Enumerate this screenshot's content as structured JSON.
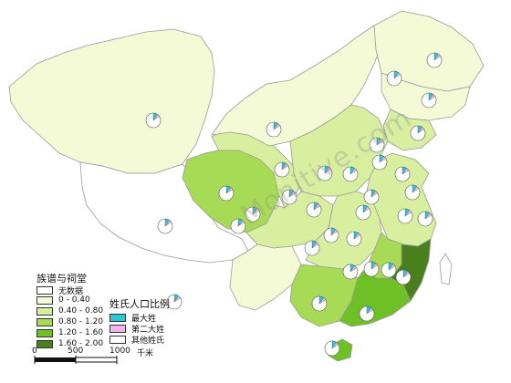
{
  "colors": {
    "no_data": "#ffffff",
    "c1": "#f4f9d6",
    "c2": "#d7ef9f",
    "c3": "#a8db55",
    "c4": "#6fbf26",
    "c5": "#4a7f1d",
    "pie_max": "#2cc6d8",
    "pie_second": "#f1b4ee",
    "pie_other": "#ffffff",
    "border": "#9a9a9a"
  },
  "legend_density": {
    "title": "族谱与祠堂",
    "classes": [
      {
        "label": "无数据",
        "color_key": "no_data"
      },
      {
        "label": "0 - 0.40",
        "color_key": "c1"
      },
      {
        "label": "0.40 - 0.80",
        "color_key": "c2"
      },
      {
        "label": "0.80 - 1.20",
        "color_key": "c3"
      },
      {
        "label": "1.20 - 1.60",
        "color_key": "c4"
      },
      {
        "label": "1.60 - 2.00",
        "color_key": "c5"
      }
    ]
  },
  "legend_pie": {
    "title": "姓氏人口比例",
    "items": [
      {
        "label": "最大姓",
        "color_key": "pie_max"
      },
      {
        "label": "第二大姓",
        "color_key": "pie_second"
      },
      {
        "label": "其他姓氏",
        "color_key": "pie_other"
      }
    ]
  },
  "scalebar": {
    "ticks": [
      "0",
      "500",
      "1000"
    ],
    "unit": "千米"
  },
  "watermark": "Monitive.com",
  "regions": [
    {
      "name": "xinjiang",
      "cls": "c1"
    },
    {
      "name": "tibet",
      "cls": "no_data"
    },
    {
      "name": "qinghai",
      "cls": "c3"
    },
    {
      "name": "gansu",
      "cls": "c2"
    },
    {
      "name": "inner-mongolia",
      "cls": "c1"
    },
    {
      "name": "heilongjiang",
      "cls": "c1"
    },
    {
      "name": "jilin",
      "cls": "c1"
    },
    {
      "name": "liaoning",
      "cls": "c2"
    },
    {
      "name": "north-central",
      "cls": "c2"
    },
    {
      "name": "sichuan",
      "cls": "c2"
    },
    {
      "name": "yunnan",
      "cls": "c1"
    },
    {
      "name": "central",
      "cls": "c2"
    },
    {
      "name": "east-coast",
      "cls": "c2"
    },
    {
      "name": "guangxi",
      "cls": "c3"
    },
    {
      "name": "guangdong",
      "cls": "c4"
    },
    {
      "name": "fujian",
      "cls": "c5"
    },
    {
      "name": "jiangxi",
      "cls": "c3"
    },
    {
      "name": "hainan",
      "cls": "c4"
    },
    {
      "name": "taiwan",
      "cls": "no_data"
    }
  ],
  "pies": [
    {
      "max": 0.1,
      "second": 0.06
    },
    {
      "max": 0.1,
      "second": 0.06
    },
    {
      "max": 0.1,
      "second": 0.06
    },
    {
      "max": 0.1,
      "second": 0.06
    },
    {
      "max": 0.1,
      "second": 0.06
    },
    {
      "max": 0.1,
      "second": 0.06
    },
    {
      "max": 0.1,
      "second": 0.06
    },
    {
      "max": 0.1,
      "second": 0.06
    },
    {
      "max": 0.1,
      "second": 0.06
    },
    {
      "max": 0.1,
      "second": 0.06
    },
    {
      "max": 0.1,
      "second": 0.06
    },
    {
      "max": 0.1,
      "second": 0.06
    },
    {
      "max": 0.1,
      "second": 0.06
    },
    {
      "max": 0.1,
      "second": 0.06
    },
    {
      "max": 0.1,
      "second": 0.06
    },
    {
      "max": 0.1,
      "second": 0.06
    },
    {
      "max": 0.1,
      "second": 0.06
    },
    {
      "max": 0.1,
      "second": 0.06
    },
    {
      "max": 0.1,
      "second": 0.06
    },
    {
      "max": 0.1,
      "second": 0.06
    },
    {
      "max": 0.1,
      "second": 0.06
    },
    {
      "max": 0.1,
      "second": 0.06
    },
    {
      "max": 0.1,
      "second": 0.06
    },
    {
      "max": 0.1,
      "second": 0.06
    },
    {
      "max": 0.1,
      "second": 0.06
    },
    {
      "max": 0.1,
      "second": 0.06
    },
    {
      "max": 0.1,
      "second": 0.06
    },
    {
      "max": 0.1,
      "second": 0.06
    },
    {
      "max": 0.1,
      "second": 0.06
    },
    {
      "max": 0.1,
      "second": 0.06
    },
    {
      "max": 0.1,
      "second": 0.06
    },
    {
      "max": 0.1,
      "second": 0.06
    },
    {
      "max": 0.1,
      "second": 0.06
    }
  ]
}
